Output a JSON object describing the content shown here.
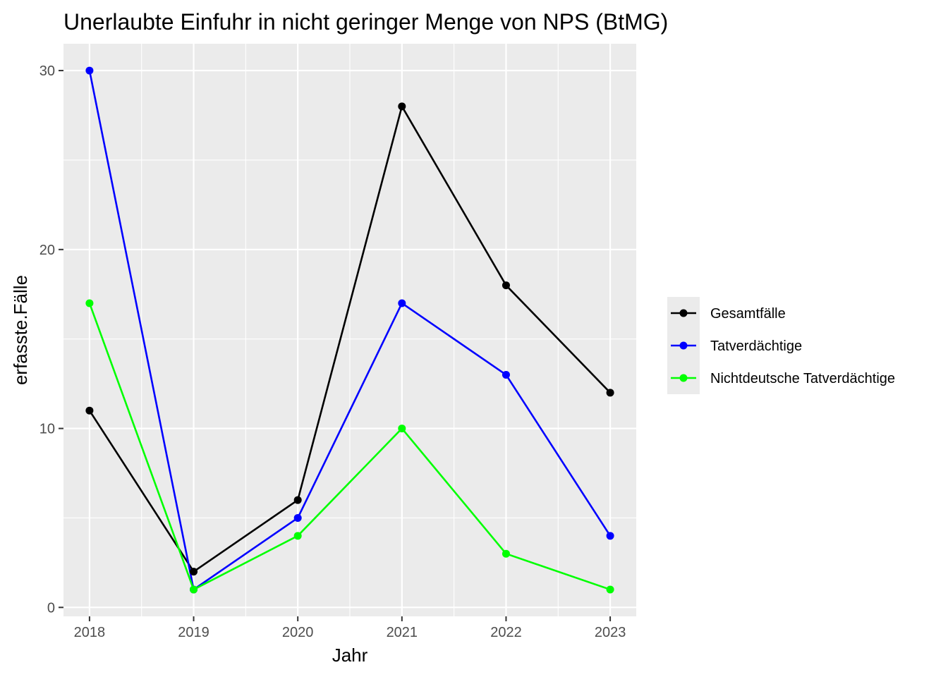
{
  "chart_data": {
    "type": "line",
    "title": "Unerlaubte Einfuhr in nicht geringer Menge von NPS (BtMG)",
    "xlabel": "Jahr",
    "ylabel": "erfasste.Fälle",
    "x": [
      2018,
      2019,
      2020,
      2021,
      2022,
      2023
    ],
    "x_tick_labels": [
      "2018",
      "2019",
      "2020",
      "2021",
      "2022",
      "2023"
    ],
    "y_tick_labels": [
      "0",
      "10",
      "20",
      "30"
    ],
    "y_ticks": [
      0,
      10,
      20,
      30
    ],
    "ylim": [
      -0.5,
      31.5
    ],
    "xlim": [
      2017.75,
      2023.25
    ],
    "grid": true,
    "legend_position": "right",
    "series": [
      {
        "name": "Gesamtfälle",
        "color": "#000000",
        "values": [
          11,
          2,
          6,
          28,
          18,
          12
        ]
      },
      {
        "name": "Tatverdächtige",
        "color": "#0000ff",
        "values": [
          30,
          1,
          5,
          17,
          13,
          4
        ]
      },
      {
        "name": "Nichtdeutsche Tatverdächtige",
        "color": "#00ff00",
        "values": [
          17,
          1,
          4,
          10,
          3,
          1
        ]
      }
    ]
  }
}
